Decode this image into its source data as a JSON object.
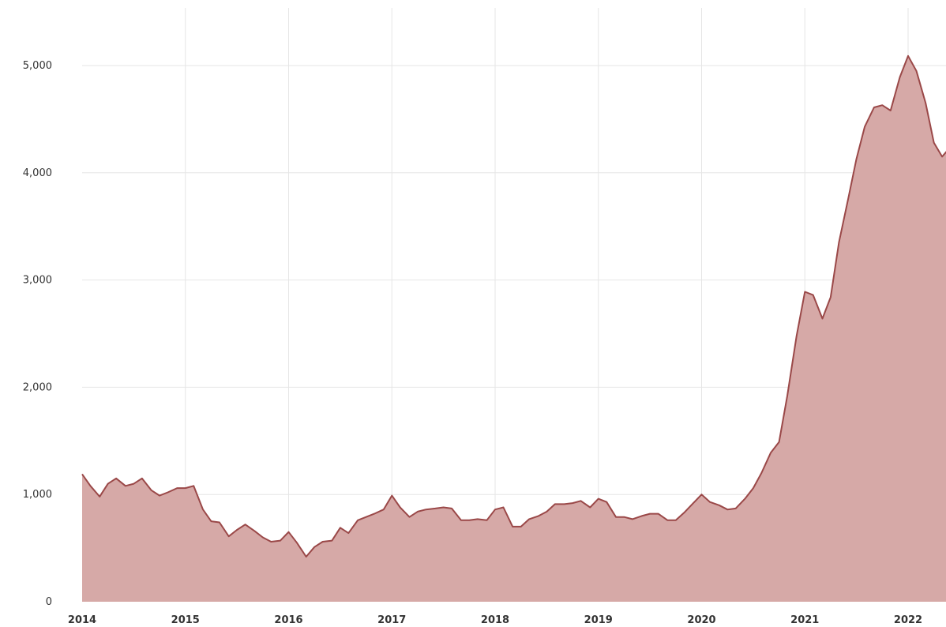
{
  "chart_data": {
    "type": "area",
    "title": "",
    "xlabel": "",
    "ylabel": "",
    "xlim": [
      2014.0,
      2022.4
    ],
    "ylim": [
      0,
      5500
    ],
    "grid": true,
    "x_ticks": [
      "2014",
      "2015",
      "2016",
      "2017",
      "2018",
      "2019",
      "2020",
      "2021",
      "2022"
    ],
    "y_ticks": [
      "0",
      "1,000",
      "2,000",
      "3,000",
      "4,000",
      "5,000"
    ],
    "y_tick_values": [
      0,
      1000,
      2000,
      3000,
      4000,
      5000
    ],
    "colors": {
      "line": "#9a4848",
      "fill": "#d6a9a7",
      "grid": "#e6e6e6"
    },
    "series": [
      {
        "x": [
          2014.0,
          2014.08,
          2014.17,
          2014.25,
          2014.33,
          2014.42,
          2014.5,
          2014.58,
          2014.67,
          2014.75,
          2014.83,
          2014.92,
          2015.0,
          2015.08,
          2015.17,
          2015.25,
          2015.33,
          2015.42,
          2015.5,
          2015.58,
          2015.67,
          2015.75,
          2015.83,
          2015.92,
          2016.0,
          2016.08,
          2016.17,
          2016.25,
          2016.33,
          2016.42,
          2016.5,
          2016.58,
          2016.67,
          2016.75,
          2016.83,
          2016.92,
          2017.0,
          2017.08,
          2017.17,
          2017.25,
          2017.33,
          2017.42,
          2017.5,
          2017.58,
          2017.67,
          2017.75,
          2017.83,
          2017.92,
          2018.0,
          2018.08,
          2018.17,
          2018.25,
          2018.33,
          2018.42,
          2018.5,
          2018.58,
          2018.67,
          2018.75,
          2018.83,
          2018.92,
          2019.0,
          2019.08,
          2019.17,
          2019.25,
          2019.33,
          2019.42,
          2019.5,
          2019.58,
          2019.67,
          2019.75,
          2019.83,
          2019.92,
          2020.0,
          2020.08,
          2020.17,
          2020.25,
          2020.33,
          2020.42,
          2020.5,
          2020.58,
          2020.67,
          2020.75,
          2020.83,
          2020.92,
          2021.0,
          2021.08,
          2021.17,
          2021.25,
          2021.33,
          2021.42,
          2021.5,
          2021.58,
          2021.67,
          2021.75,
          2021.83,
          2021.92,
          2022.0,
          2022.08,
          2022.17,
          2022.25,
          2022.33,
          2022.4
        ],
        "y": [
          1190,
          1080,
          980,
          1100,
          1150,
          1080,
          1100,
          1150,
          1040,
          990,
          1020,
          1060,
          1060,
          1080,
          860,
          750,
          740,
          610,
          670,
          720,
          660,
          600,
          560,
          570,
          650,
          550,
          420,
          510,
          560,
          570,
          690,
          640,
          760,
          790,
          820,
          860,
          990,
          880,
          790,
          840,
          860,
          870,
          880,
          870,
          760,
          760,
          770,
          760,
          860,
          880,
          700,
          700,
          770,
          800,
          840,
          910,
          910,
          920,
          940,
          880,
          960,
          930,
          790,
          790,
          770,
          800,
          820,
          820,
          760,
          760,
          830,
          920,
          1000,
          930,
          900,
          860,
          870,
          960,
          1060,
          1200,
          1390,
          1490,
          1920,
          2480,
          2890,
          2860,
          2640,
          2840,
          3350,
          3760,
          4130,
          4430,
          4610,
          4630,
          4580,
          4890,
          5090,
          4950,
          4650,
          4280,
          4150,
          4230
        ]
      }
    ]
  }
}
